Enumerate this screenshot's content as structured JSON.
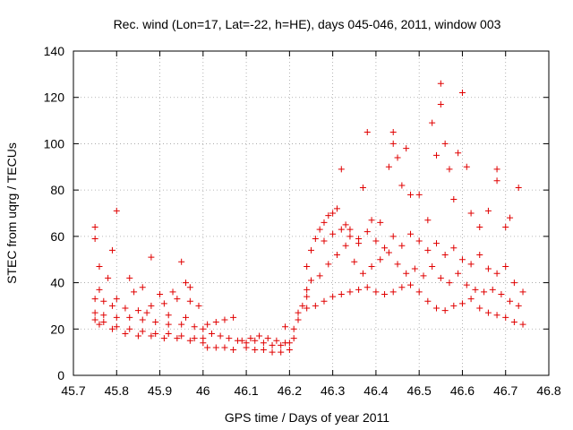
{
  "chart_data": {
    "type": "scatter",
    "title": "Rec. wind (Lon=17, Lat=-22, h=HE), days 045-046, 2011, window 003",
    "xlabel": "GPS time / Days of year 2011",
    "ylabel": "STEC from uqrg / TECUs",
    "xlim": [
      45.7,
      46.8
    ],
    "ylim": [
      0,
      140
    ],
    "xticks": [
      "45.7",
      "45.8",
      "45.9",
      "46",
      "46.1",
      "46.2",
      "46.3",
      "46.4",
      "46.5",
      "46.6",
      "46.7",
      "46.8"
    ],
    "yticks": [
      "0",
      "20",
      "40",
      "60",
      "80",
      "100",
      "120",
      "140"
    ],
    "grid": true,
    "marker": "+",
    "color": "#e00000",
    "series": [
      {
        "name": "STEC",
        "points": [
          [
            45.75,
            64
          ],
          [
            45.75,
            59
          ],
          [
            45.76,
            47
          ],
          [
            45.78,
            42
          ],
          [
            45.79,
            54
          ],
          [
            45.8,
            71
          ],
          [
            45.83,
            42
          ],
          [
            45.86,
            38
          ],
          [
            45.88,
            51
          ],
          [
            45.95,
            49
          ],
          [
            45.96,
            40
          ],
          [
            45.97,
            38
          ],
          [
            45.75,
            33
          ],
          [
            45.77,
            32
          ],
          [
            45.79,
            30
          ],
          [
            45.82,
            29
          ],
          [
            45.85,
            28
          ],
          [
            45.88,
            30
          ],
          [
            45.91,
            31
          ],
          [
            45.94,
            33
          ],
          [
            45.97,
            32
          ],
          [
            45.99,
            30
          ],
          [
            45.75,
            27
          ],
          [
            45.77,
            26
          ],
          [
            45.8,
            25
          ],
          [
            45.83,
            25
          ],
          [
            45.86,
            24
          ],
          [
            45.89,
            23
          ],
          [
            45.92,
            22
          ],
          [
            45.95,
            22
          ],
          [
            45.98,
            21
          ],
          [
            46.0,
            20
          ],
          [
            45.75,
            24
          ],
          [
            45.77,
            23
          ],
          [
            45.8,
            21
          ],
          [
            45.83,
            20
          ],
          [
            45.86,
            19
          ],
          [
            45.89,
            18
          ],
          [
            45.92,
            18
          ],
          [
            45.95,
            17
          ],
          [
            45.98,
            16
          ],
          [
            46.0,
            16
          ],
          [
            45.76,
            22
          ],
          [
            45.79,
            20
          ],
          [
            45.82,
            18
          ],
          [
            45.85,
            17
          ],
          [
            45.88,
            17
          ],
          [
            45.91,
            16
          ],
          [
            45.94,
            16
          ],
          [
            45.97,
            15
          ],
          [
            46.0,
            14
          ],
          [
            45.84,
            36
          ],
          [
            45.9,
            35
          ],
          [
            45.93,
            36
          ],
          [
            45.87,
            27
          ],
          [
            45.8,
            33
          ],
          [
            45.76,
            37
          ],
          [
            45.92,
            26
          ],
          [
            45.96,
            25
          ],
          [
            46.01,
            22
          ],
          [
            46.03,
            23
          ],
          [
            46.05,
            24
          ],
          [
            46.07,
            25
          ],
          [
            46.02,
            18
          ],
          [
            46.04,
            17
          ],
          [
            46.06,
            16
          ],
          [
            46.08,
            15
          ],
          [
            46.01,
            12
          ],
          [
            46.03,
            12
          ],
          [
            46.05,
            12
          ],
          [
            46.07,
            11
          ],
          [
            46.09,
            15
          ],
          [
            46.1,
            14
          ],
          [
            46.12,
            15
          ],
          [
            46.14,
            14
          ],
          [
            46.16,
            13
          ],
          [
            46.18,
            13
          ],
          [
            46.1,
            12
          ],
          [
            46.12,
            11
          ],
          [
            46.14,
            11
          ],
          [
            46.16,
            10
          ],
          [
            46.18,
            10
          ],
          [
            46.2,
            11
          ],
          [
            46.11,
            16
          ],
          [
            46.13,
            17
          ],
          [
            46.15,
            16
          ],
          [
            46.17,
            15
          ],
          [
            46.19,
            14
          ],
          [
            46.2,
            14
          ],
          [
            46.19,
            21
          ],
          [
            46.21,
            20
          ],
          [
            46.22,
            24
          ],
          [
            46.21,
            16
          ],
          [
            46.22,
            27
          ],
          [
            46.23,
            30
          ],
          [
            46.24,
            34
          ],
          [
            46.24,
            37
          ],
          [
            46.25,
            41
          ],
          [
            46.24,
            47
          ],
          [
            46.25,
            54
          ],
          [
            46.26,
            59
          ],
          [
            46.27,
            63
          ],
          [
            46.28,
            66
          ],
          [
            46.29,
            69
          ],
          [
            46.3,
            70
          ],
          [
            46.31,
            72
          ],
          [
            46.32,
            89
          ],
          [
            46.33,
            65
          ],
          [
            46.34,
            63
          ],
          [
            46.36,
            59
          ],
          [
            46.37,
            81
          ],
          [
            46.38,
            105
          ],
          [
            46.39,
            67
          ],
          [
            46.41,
            66
          ],
          [
            46.43,
            90
          ],
          [
            46.44,
            105
          ],
          [
            46.44,
            100
          ],
          [
            46.45,
            94
          ],
          [
            46.46,
            82
          ],
          [
            46.47,
            98
          ],
          [
            46.48,
            78
          ],
          [
            46.5,
            78
          ],
          [
            46.52,
            67
          ],
          [
            46.53,
            109
          ],
          [
            46.54,
            95
          ],
          [
            46.55,
            126
          ],
          [
            46.55,
            117
          ],
          [
            46.56,
            100
          ],
          [
            46.57,
            89
          ],
          [
            46.58,
            76
          ],
          [
            46.59,
            96
          ],
          [
            46.6,
            122
          ],
          [
            46.61,
            90
          ],
          [
            46.62,
            70
          ],
          [
            46.64,
            64
          ],
          [
            46.66,
            71
          ],
          [
            46.68,
            89
          ],
          [
            46.68,
            84
          ],
          [
            46.7,
            64
          ],
          [
            46.71,
            68
          ],
          [
            46.73,
            81
          ],
          [
            46.24,
            29
          ],
          [
            46.26,
            30
          ],
          [
            46.28,
            32
          ],
          [
            46.3,
            34
          ],
          [
            46.32,
            35
          ],
          [
            46.34,
            36
          ],
          [
            46.36,
            37
          ],
          [
            46.38,
            38
          ],
          [
            46.4,
            36
          ],
          [
            46.42,
            35
          ],
          [
            46.44,
            36
          ],
          [
            46.46,
            38
          ],
          [
            46.48,
            39
          ],
          [
            46.5,
            36
          ],
          [
            46.52,
            32
          ],
          [
            46.54,
            29
          ],
          [
            46.56,
            28
          ],
          [
            46.58,
            30
          ],
          [
            46.6,
            31
          ],
          [
            46.62,
            33
          ],
          [
            46.64,
            29
          ],
          [
            46.66,
            27
          ],
          [
            46.68,
            26
          ],
          [
            46.7,
            25
          ],
          [
            46.72,
            23
          ],
          [
            46.74,
            22
          ],
          [
            46.27,
            43
          ],
          [
            46.29,
            48
          ],
          [
            46.31,
            52
          ],
          [
            46.33,
            56
          ],
          [
            46.35,
            49
          ],
          [
            46.37,
            44
          ],
          [
            46.39,
            47
          ],
          [
            46.41,
            50
          ],
          [
            46.43,
            53
          ],
          [
            46.45,
            48
          ],
          [
            46.47,
            44
          ],
          [
            46.49,
            46
          ],
          [
            46.51,
            43
          ],
          [
            46.53,
            47
          ],
          [
            46.55,
            42
          ],
          [
            46.57,
            40
          ],
          [
            46.59,
            44
          ],
          [
            46.61,
            39
          ],
          [
            46.63,
            37
          ],
          [
            46.65,
            36
          ],
          [
            46.67,
            37
          ],
          [
            46.69,
            35
          ],
          [
            46.71,
            32
          ],
          [
            46.73,
            30
          ],
          [
            46.28,
            58
          ],
          [
            46.3,
            61
          ],
          [
            46.32,
            63
          ],
          [
            46.34,
            60
          ],
          [
            46.36,
            57
          ],
          [
            46.38,
            62
          ],
          [
            46.4,
            58
          ],
          [
            46.42,
            55
          ],
          [
            46.44,
            60
          ],
          [
            46.46,
            56
          ],
          [
            46.48,
            61
          ],
          [
            46.5,
            58
          ],
          [
            46.52,
            54
          ],
          [
            46.54,
            57
          ],
          [
            46.56,
            52
          ],
          [
            46.58,
            55
          ],
          [
            46.6,
            50
          ],
          [
            46.62,
            48
          ],
          [
            46.64,
            52
          ],
          [
            46.66,
            46
          ],
          [
            46.68,
            44
          ],
          [
            46.7,
            47
          ],
          [
            46.72,
            40
          ],
          [
            46.74,
            36
          ]
        ]
      }
    ]
  }
}
